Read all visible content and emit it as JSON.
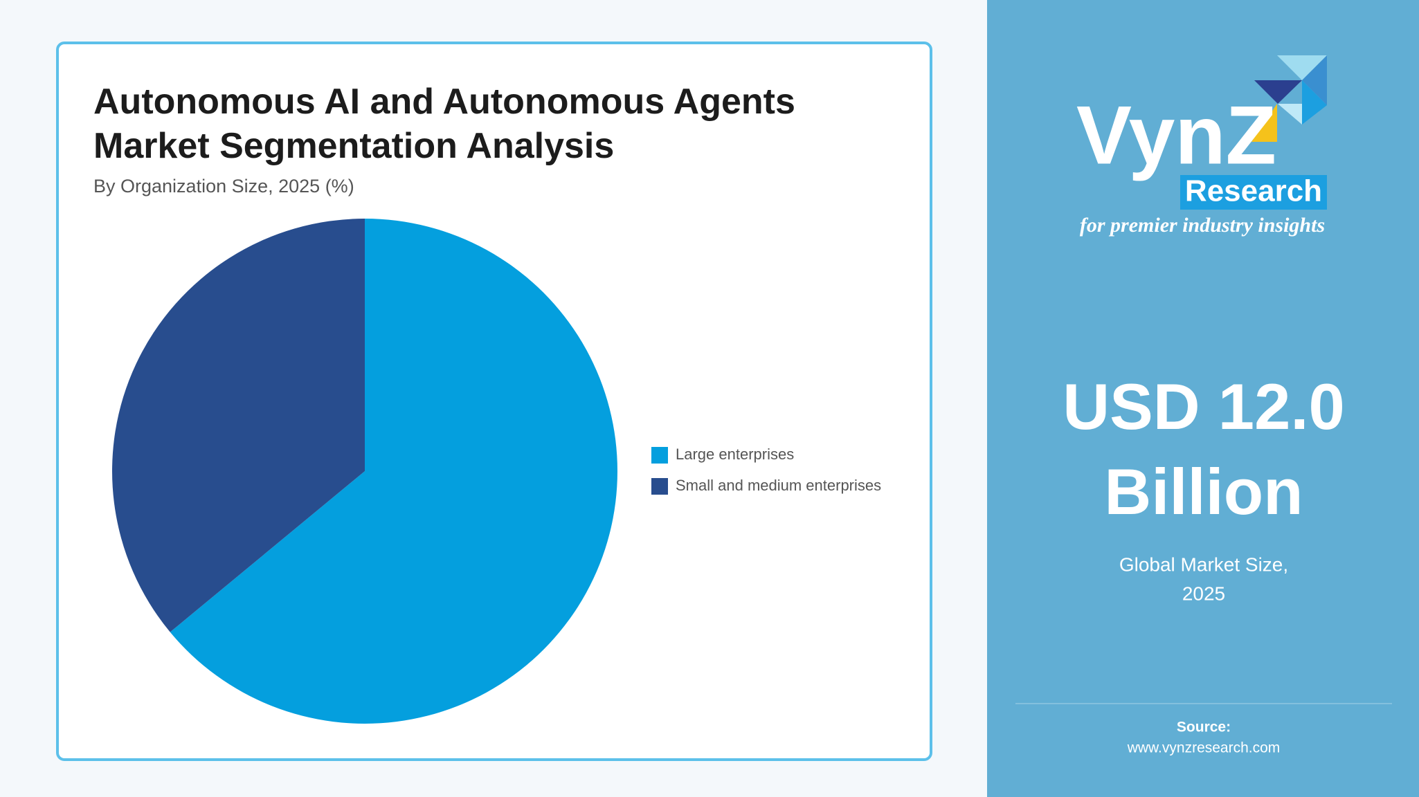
{
  "chart_data": {
    "type": "pie",
    "title": "Autonomous AI and Autonomous Agents Market Segmentation Analysis",
    "subtitle": "By Organization Size, 2025 (%)",
    "categories": [
      "Large enterprises",
      "Small and medium enterprises"
    ],
    "values": [
      64,
      36
    ],
    "colors": [
      "#049fde",
      "#284d8e"
    ],
    "legend": "right"
  },
  "sidebar": {
    "logo": {
      "brand": "VynZ",
      "badge": "Research",
      "tagline": "for premier industry insights"
    },
    "headline": [
      "USD 12.0",
      "Billion"
    ],
    "caption": [
      "Global Market Size,",
      "2025"
    ],
    "source_label": "Source:",
    "source_url": "www.vynzresearch.com"
  }
}
